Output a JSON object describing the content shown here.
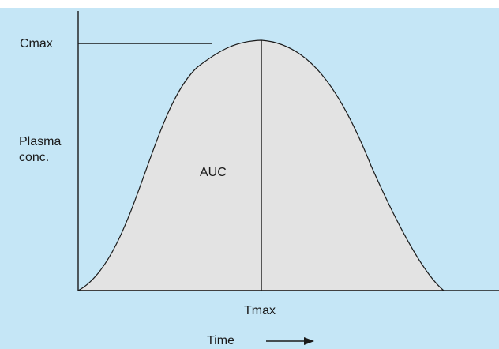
{
  "diagram": {
    "background_color": "#c5e6f6",
    "area_fill_color": "#e3e3e3",
    "line_color": "#1a1a1a",
    "labels": {
      "cmax": "Cmax",
      "y_axis_line1": "Plasma",
      "y_axis_line2": "conc.",
      "auc": "AUC",
      "tmax": "Tmax",
      "time": "Time"
    }
  }
}
